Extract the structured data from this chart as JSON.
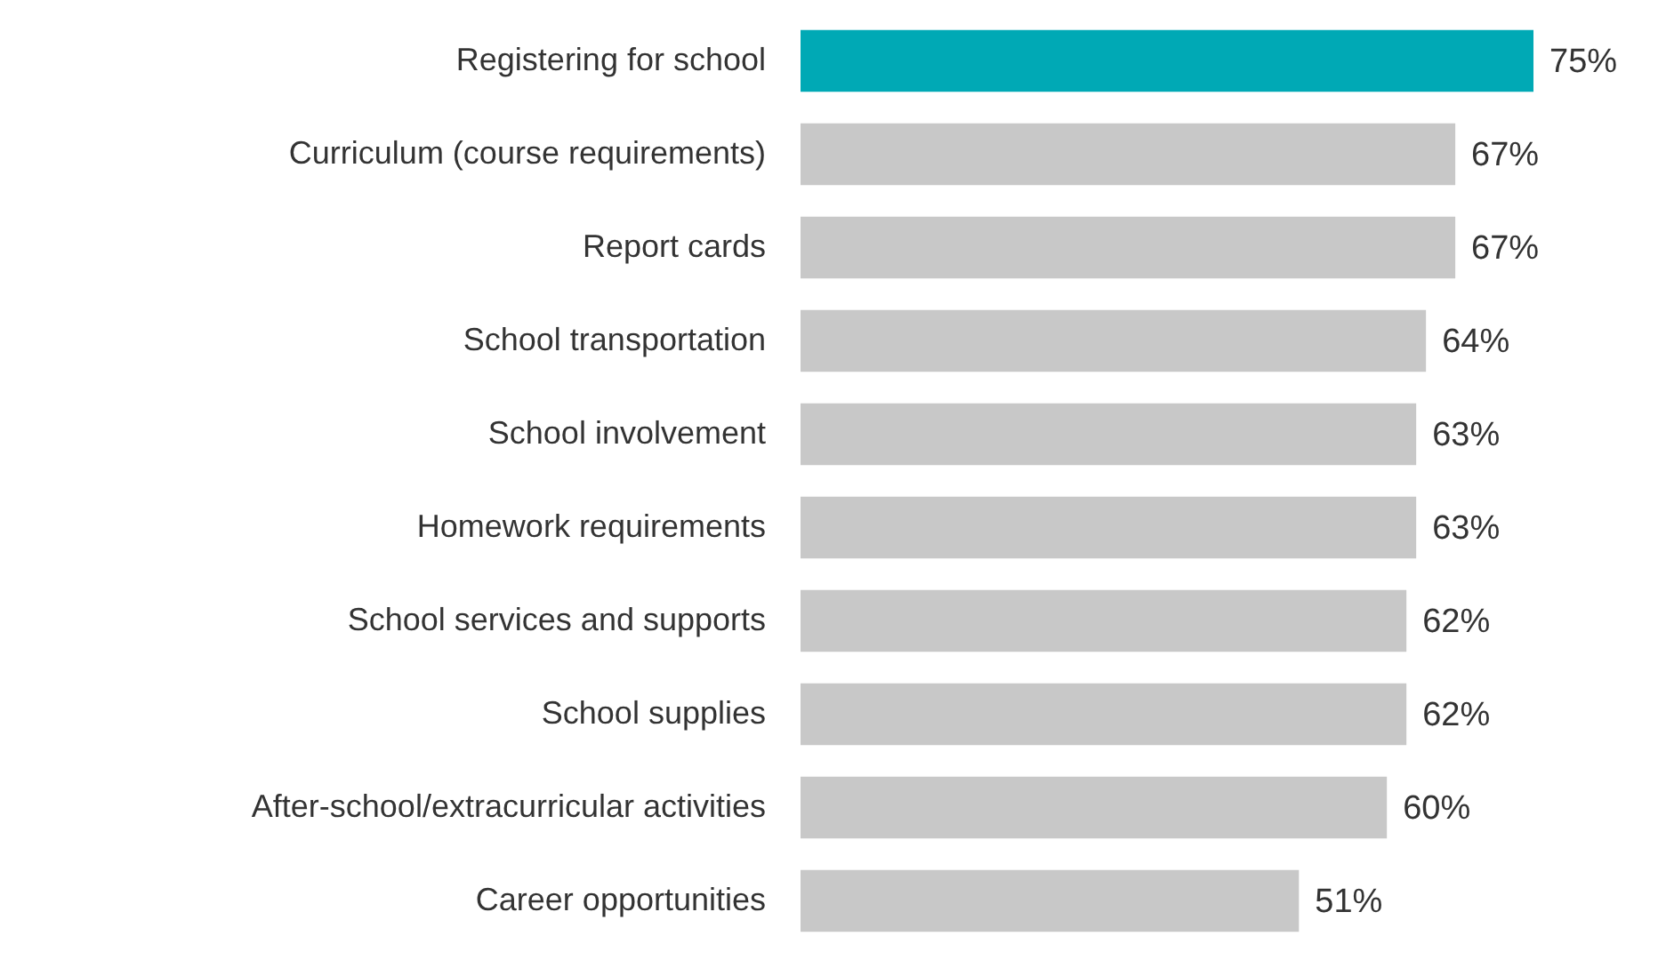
{
  "chart_data": {
    "type": "bar",
    "orientation": "horizontal",
    "categories": [
      "Registering for school",
      "Curriculum (course requirements)",
      "Report cards",
      "School transportation",
      "School involvement",
      "Homework requirements",
      "School services and supports",
      "School supplies",
      "After-school/extracurricular activities",
      "Career opportunities"
    ],
    "values": [
      75,
      67,
      67,
      64,
      63,
      63,
      62,
      62,
      60,
      51
    ],
    "colors": [
      "#00a9b5",
      "#c8c8c8",
      "#c8c8c8",
      "#c8c8c8",
      "#c8c8c8",
      "#c8c8c8",
      "#c8c8c8",
      "#c8c8c8",
      "#c8c8c8",
      "#c8c8c8"
    ],
    "value_labels": [
      "75%",
      "67%",
      "67%",
      "64%",
      "63%",
      "63%",
      "62%",
      "62%",
      "60%",
      "51%"
    ]
  }
}
